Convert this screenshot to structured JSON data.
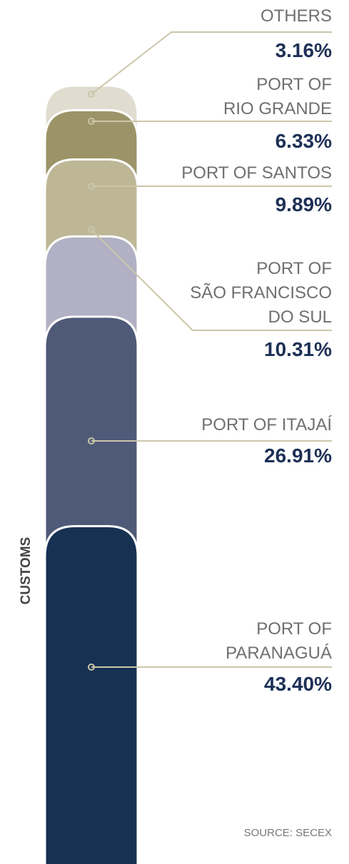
{
  "chart_data": {
    "type": "bar",
    "stacked": true,
    "title": "CUSTOMS",
    "categories": [
      "OTHERS",
      "PORT OF\nRIO GRANDE",
      "PORT OF SANTOS",
      "PORT OF\nSÃO FRANCISCO\nDO SUL",
      "PORT OF ITAJAÍ",
      "PORT OF\nPARANAGUÁ"
    ],
    "values": [
      3.16,
      6.33,
      9.89,
      10.31,
      26.91,
      43.4
    ],
    "value_labels": [
      "3.16%",
      "6.33%",
      "9.89%",
      "10.31%",
      "26.91%",
      "43.40%"
    ],
    "colors": [
      "#e0ddd0",
      "#9c9468",
      "#bdb796",
      "#b1b0c4",
      "#4f5a78",
      "#173153"
    ],
    "ylim": [
      0,
      100
    ],
    "source": "SOURCE: SECEX"
  }
}
